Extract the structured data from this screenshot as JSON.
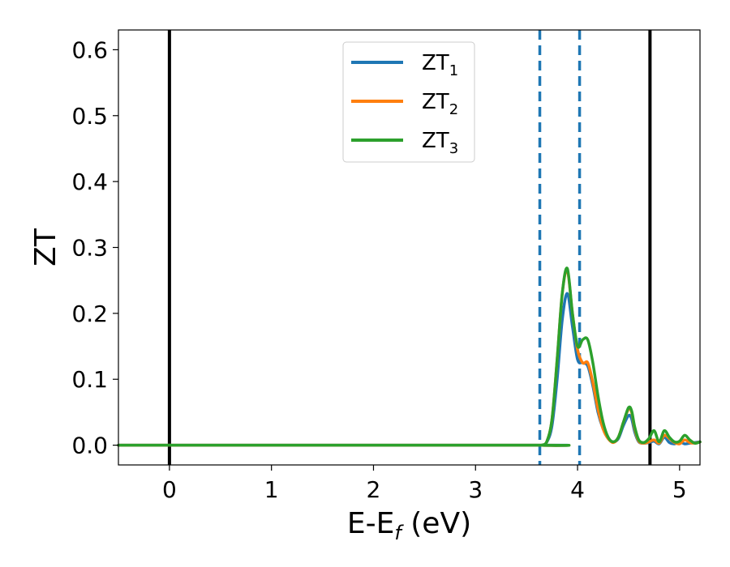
{
  "chart_data": {
    "type": "line",
    "xlabel": "E-E",
    "xlabel_sub": "f",
    "xlabel_unit": " (eV)",
    "ylabel": "ZT",
    "xlim": [
      -0.5,
      5.2
    ],
    "ylim": [
      -0.03,
      0.63
    ],
    "xticks": [
      0,
      1,
      2,
      3,
      4,
      5
    ],
    "xtick_labels": [
      "0",
      "1",
      "2",
      "3",
      "4",
      "5"
    ],
    "yticks": [
      0.0,
      0.1,
      0.2,
      0.3,
      0.4,
      0.5,
      0.6
    ],
    "ytick_labels": [
      "0.0",
      "0.1",
      "0.2",
      "0.3",
      "0.4",
      "0.5",
      "0.6"
    ],
    "grid": false,
    "legend_placement": "top-center",
    "vlines": [
      {
        "x": 0.0,
        "style": "solid",
        "color": "#000000"
      },
      {
        "x": 4.71,
        "style": "solid",
        "color": "#000000"
      },
      {
        "x": 3.63,
        "style": "dashed",
        "color": "#1f77b4"
      },
      {
        "x": 4.02,
        "style": "dashed",
        "color": "#1f77b4"
      }
    ],
    "series": [
      {
        "name": "ZT",
        "name_sub": "1",
        "color": "#1f77b4",
        "x": [
          -0.5,
          3.6,
          3.65,
          3.7,
          3.75,
          3.8,
          3.85,
          3.9,
          3.95,
          4.0,
          4.05,
          4.1,
          4.15,
          4.2,
          4.25,
          4.3,
          4.35,
          4.4,
          4.45,
          4.5,
          4.53,
          4.56,
          4.6,
          4.65,
          4.7,
          4.75,
          4.8,
          4.85,
          4.9,
          4.95,
          5.0,
          5.05,
          5.1,
          5.15,
          5.2
        ],
        "y": [
          0.0,
          0.0,
          0.0,
          0.005,
          0.03,
          0.1,
          0.19,
          0.23,
          0.18,
          0.13,
          0.125,
          0.12,
          0.09,
          0.05,
          0.025,
          0.01,
          0.005,
          0.01,
          0.03,
          0.045,
          0.04,
          0.02,
          0.005,
          0.003,
          0.004,
          0.006,
          0.002,
          0.012,
          0.004,
          0.002,
          0.005,
          0.002,
          0.003,
          0.004,
          0.005
        ]
      },
      {
        "name": "ZT",
        "name_sub": "2",
        "color": "#ff7f0e",
        "x": [
          -0.5,
          3.6,
          3.65,
          3.7,
          3.75,
          3.8,
          3.85,
          3.9,
          3.95,
          4.0,
          4.05,
          4.1,
          4.15,
          4.2,
          4.25,
          4.3,
          4.35,
          4.4,
          4.45,
          4.5,
          4.53,
          4.56,
          4.6,
          4.65,
          4.7,
          4.75,
          4.8,
          4.85,
          4.9,
          4.95,
          5.0,
          5.05,
          5.1,
          5.15,
          5.2
        ],
        "y": [
          0.0,
          0.0,
          0.0,
          0.006,
          0.04,
          0.13,
          0.23,
          0.265,
          0.2,
          0.145,
          0.125,
          0.125,
          0.095,
          0.055,
          0.025,
          0.01,
          0.004,
          0.012,
          0.035,
          0.055,
          0.05,
          0.025,
          0.006,
          0.003,
          0.005,
          0.008,
          0.003,
          0.015,
          0.01,
          0.004,
          0.002,
          0.008,
          0.004,
          0.003,
          0.005
        ]
      },
      {
        "name": "ZT",
        "name_sub": "3",
        "color": "#2ca02c",
        "x": [
          -0.5,
          3.6,
          3.65,
          3.7,
          3.75,
          3.8,
          3.85,
          3.9,
          3.95,
          4.0,
          4.05,
          4.1,
          4.15,
          4.2,
          4.25,
          4.3,
          4.35,
          4.4,
          4.45,
          4.5,
          4.53,
          4.56,
          4.6,
          4.65,
          4.7,
          4.75,
          4.8,
          4.85,
          4.9,
          4.95,
          5.0,
          5.05,
          5.1,
          5.15,
          5.2
        ],
        "y": [
          0.0,
          0.0,
          0.0,
          0.006,
          0.04,
          0.13,
          0.23,
          0.268,
          0.2,
          0.15,
          0.16,
          0.16,
          0.125,
          0.075,
          0.035,
          0.012,
          0.005,
          0.012,
          0.035,
          0.057,
          0.052,
          0.028,
          0.008,
          0.004,
          0.01,
          0.022,
          0.005,
          0.022,
          0.012,
          0.005,
          0.006,
          0.015,
          0.008,
          0.003,
          0.005
        ]
      }
    ]
  }
}
